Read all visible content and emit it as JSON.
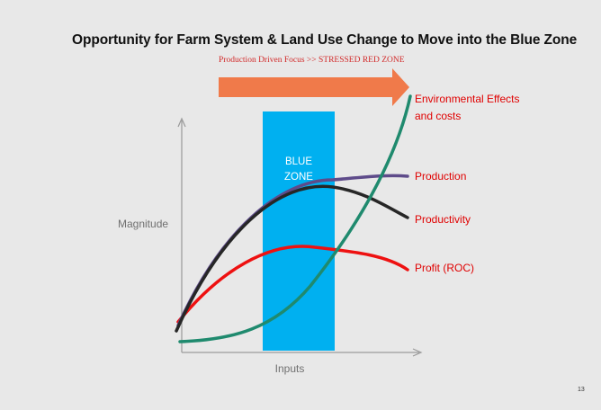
{
  "slide": {
    "title": "Opportunity for Farm System & Land Use Change to Move into the Blue Zone",
    "subtitle": "Production Driven Focus >> STRESSED RED ZONE",
    "page_number": "13"
  },
  "diagram": {
    "zone_label_line1": "BLUE",
    "zone_label_line2": "ZONE",
    "y_axis_label": "Magnitude",
    "x_axis_label": "Inputs",
    "curve_labels": {
      "environmental_line1": "Environmental Effects",
      "environmental_line2": "and costs",
      "production": "Production",
      "productivity": "Productivity",
      "profit": "Profit (ROC)"
    }
  },
  "colors": {
    "background": "#e8e8e8",
    "blue_zone": "#00b0f0",
    "arrow": "#f07a4a",
    "label_red": "#e00000",
    "environmental_curve": "#1f8a6e",
    "production_curve": "#5e4b8a",
    "productivity_curve": "#262626",
    "profit_curve": "#ee1111",
    "axis": "#9a9a9a"
  }
}
